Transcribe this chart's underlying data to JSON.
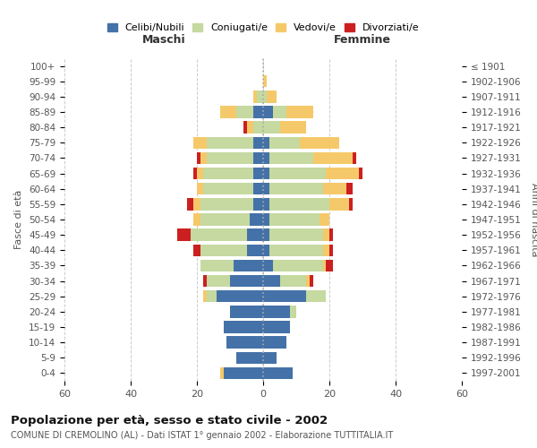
{
  "age_groups": [
    "0-4",
    "5-9",
    "10-14",
    "15-19",
    "20-24",
    "25-29",
    "30-34",
    "35-39",
    "40-44",
    "45-49",
    "50-54",
    "55-59",
    "60-64",
    "65-69",
    "70-74",
    "75-79",
    "80-84",
    "85-89",
    "90-94",
    "95-99",
    "100+"
  ],
  "birth_years": [
    "1997-2001",
    "1992-1996",
    "1987-1991",
    "1982-1986",
    "1977-1981",
    "1972-1976",
    "1967-1971",
    "1962-1966",
    "1957-1961",
    "1952-1956",
    "1947-1951",
    "1942-1946",
    "1937-1941",
    "1932-1936",
    "1927-1931",
    "1922-1926",
    "1917-1921",
    "1912-1916",
    "1907-1911",
    "1902-1906",
    "≤ 1901"
  ],
  "maschi": {
    "celibi": [
      12,
      8,
      11,
      12,
      10,
      14,
      10,
      9,
      5,
      5,
      4,
      3,
      3,
      3,
      3,
      3,
      0,
      3,
      0,
      0,
      0
    ],
    "coniugati": [
      0,
      0,
      0,
      0,
      0,
      3,
      7,
      10,
      14,
      17,
      15,
      16,
      15,
      15,
      14,
      14,
      3,
      5,
      2,
      0,
      0
    ],
    "vedovi": [
      1,
      0,
      0,
      0,
      0,
      1,
      0,
      0,
      0,
      0,
      2,
      2,
      2,
      2,
      2,
      4,
      2,
      5,
      1,
      0,
      0
    ],
    "divorziati": [
      0,
      0,
      0,
      0,
      0,
      0,
      1,
      0,
      2,
      4,
      0,
      2,
      0,
      1,
      1,
      0,
      1,
      0,
      0,
      0,
      0
    ]
  },
  "femmine": {
    "nubili": [
      9,
      4,
      7,
      8,
      8,
      13,
      5,
      3,
      2,
      2,
      2,
      2,
      2,
      2,
      2,
      2,
      0,
      3,
      0,
      0,
      0
    ],
    "coniugate": [
      0,
      0,
      0,
      0,
      2,
      6,
      8,
      15,
      16,
      16,
      15,
      18,
      16,
      17,
      13,
      9,
      5,
      4,
      1,
      0,
      0
    ],
    "vedove": [
      0,
      0,
      0,
      0,
      0,
      0,
      1,
      1,
      2,
      2,
      3,
      6,
      7,
      10,
      12,
      12,
      8,
      8,
      3,
      1,
      0
    ],
    "divorziate": [
      0,
      0,
      0,
      0,
      0,
      0,
      1,
      2,
      1,
      1,
      0,
      1,
      2,
      1,
      1,
      0,
      0,
      0,
      0,
      0,
      0
    ]
  },
  "colors": {
    "celibi": "#4472a8",
    "coniugati": "#c5d9a0",
    "vedovi": "#f5c96a",
    "divorziati": "#cc2020"
  },
  "xlim": 60,
  "title": "Popolazione per età, sesso e stato civile - 2002",
  "subtitle": "COMUNE DI CREMOLINO (AL) - Dati ISTAT 1° gennaio 2002 - Elaborazione TUTTITALIA.IT",
  "ylabel_left": "Fasce di età",
  "ylabel_right": "Anni di nascita",
  "xlabel_left": "Maschi",
  "xlabel_right": "Femmine",
  "legend_labels": [
    "Celibi/Nubili",
    "Coniugati/e",
    "Vedovi/e",
    "Divorziati/e"
  ],
  "bg_color": "#ffffff",
  "grid_color": "#cccccc"
}
